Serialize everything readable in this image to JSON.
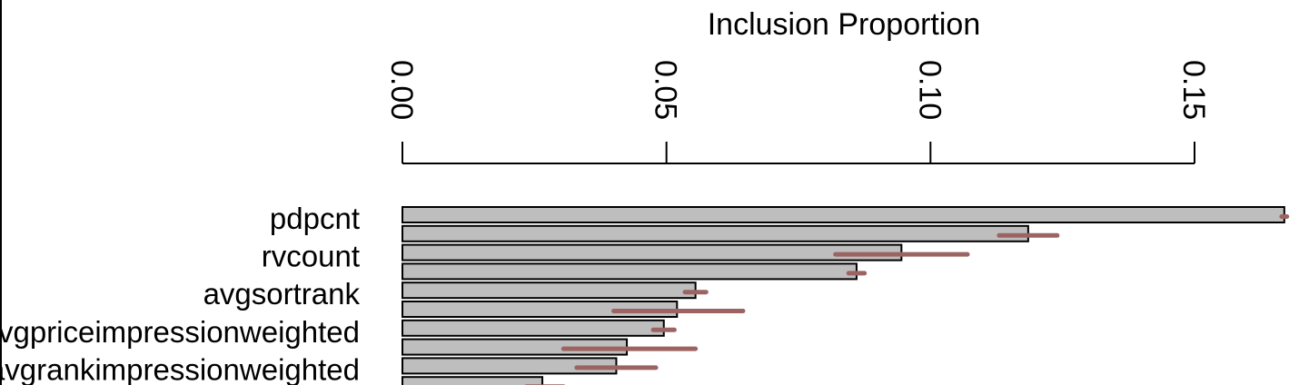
{
  "chart_data": {
    "type": "bar",
    "orientation": "horizontal",
    "title": "Inclusion Proportion",
    "xlim": [
      0.0,
      0.15
    ],
    "x_ticks": [
      {
        "value": 0.0,
        "label": "0.00"
      },
      {
        "value": 0.05,
        "label": "0.05"
      },
      {
        "value": 0.1,
        "label": "0.10"
      },
      {
        "value": 0.15,
        "label": "0.15"
      }
    ],
    "axis_position": "top",
    "tick_label_rotation": "vertical",
    "bars": [
      {
        "value": 0.167,
        "err_low": 0.1665,
        "err_high": 0.1675
      },
      {
        "value": 0.1185,
        "err_low": 0.113,
        "err_high": 0.124
      },
      {
        "value": 0.0945,
        "err_low": 0.082,
        "err_high": 0.107
      },
      {
        "value": 0.086,
        "err_low": 0.0845,
        "err_high": 0.0875
      },
      {
        "value": 0.0555,
        "err_low": 0.0535,
        "err_high": 0.0575
      },
      {
        "value": 0.052,
        "err_low": 0.04,
        "err_high": 0.0645
      },
      {
        "value": 0.0495,
        "err_low": 0.0475,
        "err_high": 0.0515
      },
      {
        "value": 0.0425,
        "err_low": 0.0305,
        "err_high": 0.0555
      },
      {
        "value": 0.0405,
        "err_low": 0.033,
        "err_high": 0.048
      },
      {
        "value": 0.0265,
        "err_low": 0.0235,
        "err_high": 0.0305
      }
    ],
    "row_labels": [
      {
        "row": 0,
        "text": "pdpcnt"
      },
      {
        "row": 2,
        "text": "rvcount"
      },
      {
        "row": 4,
        "text": "avgsortrank"
      },
      {
        "row": 6,
        "text": "avgpriceimpressionweighted"
      },
      {
        "row": 8,
        "text": "avgrankimpressionweighted"
      }
    ],
    "colors": {
      "bar_fill": "#bebebe",
      "bar_stroke": "#000000",
      "error_bar": "#9b6462"
    },
    "grid": false,
    "legend": "none"
  }
}
